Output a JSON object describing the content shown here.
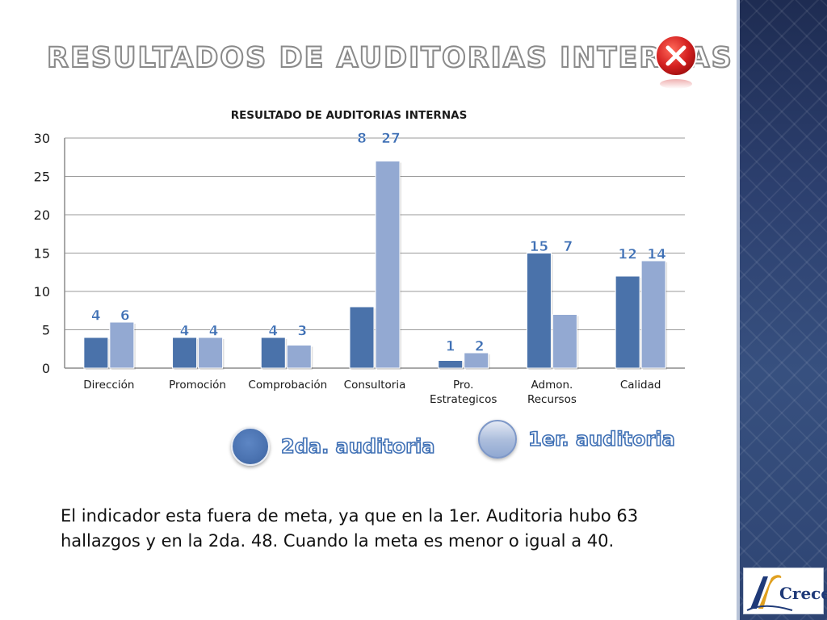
{
  "slide": {
    "title": "RESULTADOS DE AUDITORIAS INTERNAS",
    "body_text": "El indicador esta fuera de meta, ya que en la 1er. Auditoria hubo 63 hallazgos y en la 2da. 48. Cuando la meta es menor o igual a 40.",
    "logo_text": "Crece"
  },
  "icons": {
    "close": "close-icon",
    "logo": "crece-logo-icon"
  },
  "colors": {
    "series_2da": "#4a72aa",
    "series_1er": "#93a9d2",
    "data_label": "#3f70b5",
    "panel": "#2c3f6e",
    "close_red": "#d42020"
  },
  "legend": {
    "items": [
      {
        "label": "2da. auditoria"
      },
      {
        "label": "1er. auditoria"
      }
    ]
  },
  "chart_data": {
    "type": "bar",
    "title": "RESULTADO DE AUDITORIAS INTERNAS",
    "categories": [
      [
        "Dirección"
      ],
      [
        "Promoción"
      ],
      [
        "Comprobación"
      ],
      [
        "Consultoria"
      ],
      [
        "Pro.",
        "Estrategicos"
      ],
      [
        "Admon.",
        "Recursos"
      ],
      [
        "Calidad"
      ]
    ],
    "series": [
      {
        "name": "2da. auditoria",
        "values": [
          4,
          4,
          4,
          8,
          1,
          15,
          12
        ]
      },
      {
        "name": "1er. auditoria",
        "values": [
          6,
          4,
          3,
          27,
          2,
          7,
          14
        ]
      }
    ],
    "ylim": [
      0,
      30
    ],
    "yticks": [
      0,
      5,
      10,
      15,
      20,
      25,
      30
    ],
    "grid": true,
    "legend_position": "bottom"
  }
}
